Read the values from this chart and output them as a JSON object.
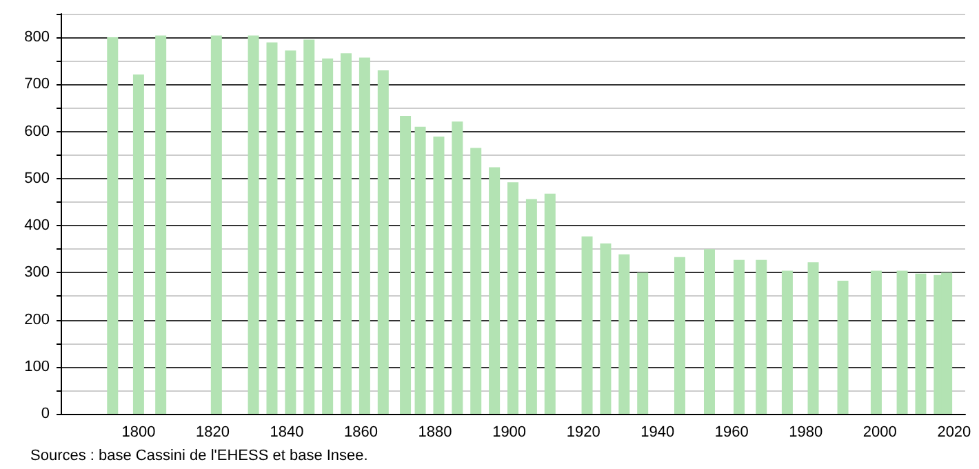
{
  "chart_data": {
    "type": "bar",
    "x": [
      1793,
      1800,
      1806,
      1821,
      1831,
      1836,
      1841,
      1846,
      1851,
      1856,
      1861,
      1866,
      1872,
      1876,
      1881,
      1886,
      1891,
      1896,
      1901,
      1906,
      1911,
      1921,
      1926,
      1931,
      1936,
      1946,
      1954,
      1962,
      1968,
      1975,
      1982,
      1990,
      1999,
      2006,
      2011,
      2016,
      2018
    ],
    "values": [
      800,
      721,
      804,
      804,
      804,
      789,
      772,
      795,
      755,
      766,
      757,
      730,
      633,
      610,
      589,
      621,
      565,
      524,
      492,
      456,
      468,
      377,
      362,
      339,
      300,
      333,
      350,
      327,
      327,
      304,
      322,
      283,
      304,
      304,
      298,
      295,
      300
    ],
    "color": "#b3e3b3",
    "xlim": [
      1779,
      2023
    ],
    "xticks": [
      1800,
      1820,
      1840,
      1860,
      1880,
      1900,
      1920,
      1940,
      1960,
      1980,
      2000,
      2020
    ],
    "ylim": [
      0,
      850
    ],
    "yticks": [
      0,
      {
        "value": 50,
        "label": null
      },
      100,
      {
        "value": 150,
        "label": null
      },
      200,
      {
        "value": 250,
        "label": null
      },
      300,
      {
        "value": 350,
        "label": null
      },
      400,
      {
        "value": 450,
        "label": null
      },
      500,
      {
        "value": 550,
        "label": null
      },
      600,
      {
        "value": 650,
        "label": null
      },
      700,
      {
        "value": 750,
        "label": null
      },
      800,
      {
        "value": 850,
        "label": null
      }
    ],
    "grid": "y",
    "annotations": [
      "Sources : base Cassini de l'EHESS et base Insee."
    ]
  }
}
